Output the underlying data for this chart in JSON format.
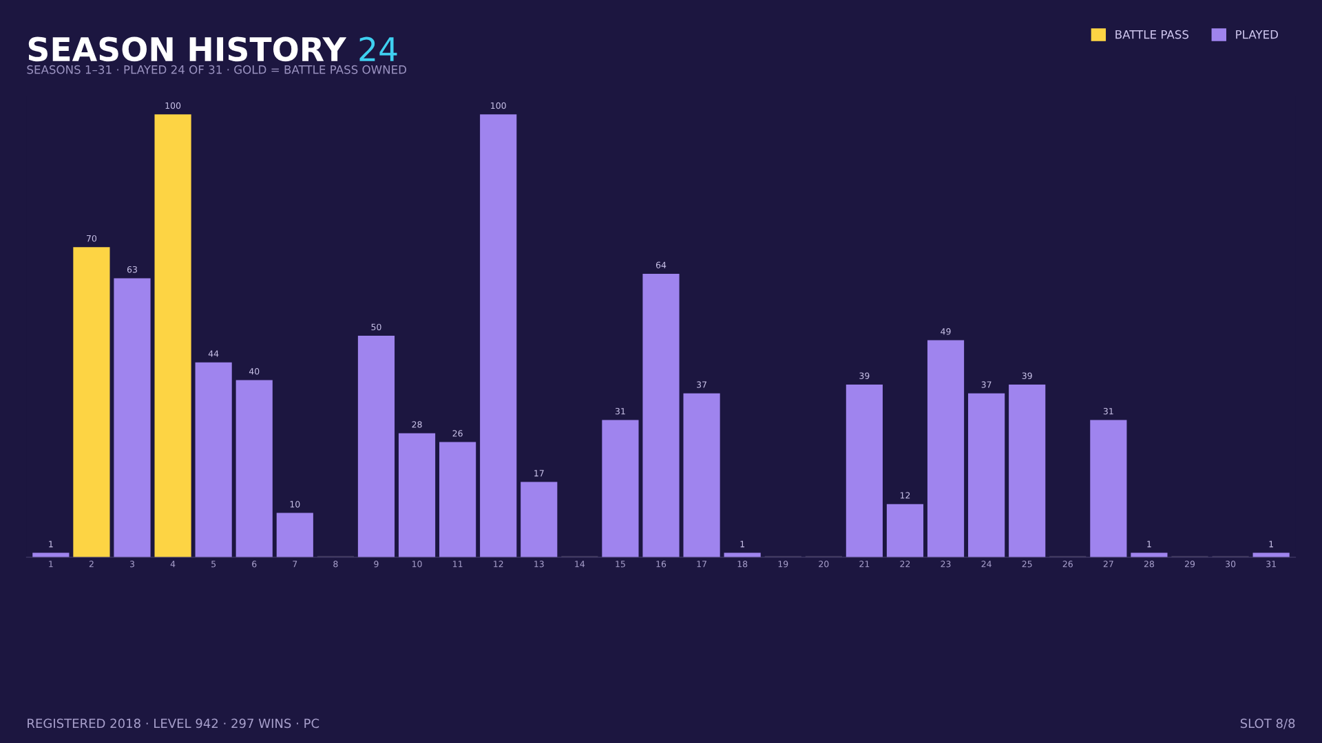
{
  "chart_data": {
    "type": "bar",
    "title": "SEASON HISTORY",
    "subtitle": "SEASONS 1–31 · PLAYED 24 OF 31 · GOLD = BATTLE PASS OWNED",
    "categories": [
      "1",
      "2",
      "3",
      "4",
      "5",
      "6",
      "7",
      "8",
      "9",
      "10",
      "11",
      "12",
      "13",
      "14",
      "15",
      "16",
      "17",
      "18",
      "19",
      "20",
      "21",
      "22",
      "23",
      "24",
      "25",
      "26",
      "27",
      "28",
      "29",
      "30",
      "31"
    ],
    "series": [
      {
        "name": "BATTLE PASS",
        "color": "#fdd444",
        "values": [
          null,
          70,
          null,
          100,
          null,
          null,
          null,
          null,
          null,
          null,
          null,
          null,
          null,
          null,
          null,
          null,
          null,
          null,
          null,
          null,
          null,
          null,
          null,
          null,
          null,
          null,
          null,
          null,
          null,
          null,
          null
        ],
        "value_labels": [
          null,
          "70",
          null,
          "100",
          null,
          null,
          null,
          null,
          null,
          null,
          null,
          null,
          null,
          null,
          null,
          null,
          null,
          null,
          null,
          null,
          null,
          null,
          null,
          null,
          null,
          null,
          null,
          null,
          null,
          null,
          null
        ]
      },
      {
        "name": "PLAYED",
        "color": "#9f84ee",
        "values": [
          1,
          null,
          63,
          null,
          44,
          40,
          10,
          null,
          50,
          28,
          26,
          100,
          17,
          null,
          31,
          64,
          37,
          1,
          null,
          null,
          39,
          12,
          49,
          37,
          39,
          null,
          31,
          1,
          null,
          null,
          1
        ],
        "value_labels": [
          "1",
          null,
          "63",
          null,
          "44",
          "40",
          "10",
          null,
          "50",
          "28",
          "26",
          "100",
          "17",
          null,
          "31",
          "64",
          "37",
          "1",
          null,
          null,
          "39",
          "12",
          "49",
          "37",
          "39",
          null,
          "31",
          "1",
          null,
          null,
          "1"
        ]
      },
      {
        "color": "#3a3458",
        "values": [
          null,
          null,
          null,
          null,
          null,
          null,
          null,
          0,
          null,
          null,
          null,
          null,
          null,
          0,
          null,
          null,
          null,
          null,
          0,
          0,
          null,
          null,
          null,
          null,
          null,
          0,
          null,
          null,
          0,
          0,
          null
        ]
      }
    ],
    "legend": "top right",
    "grid": false,
    "annotations": [
      "24",
      "REGISTERED 2018 · LEVEL 942 · 297 WINS · PC",
      "SLOT 8/8"
    ]
  }
}
